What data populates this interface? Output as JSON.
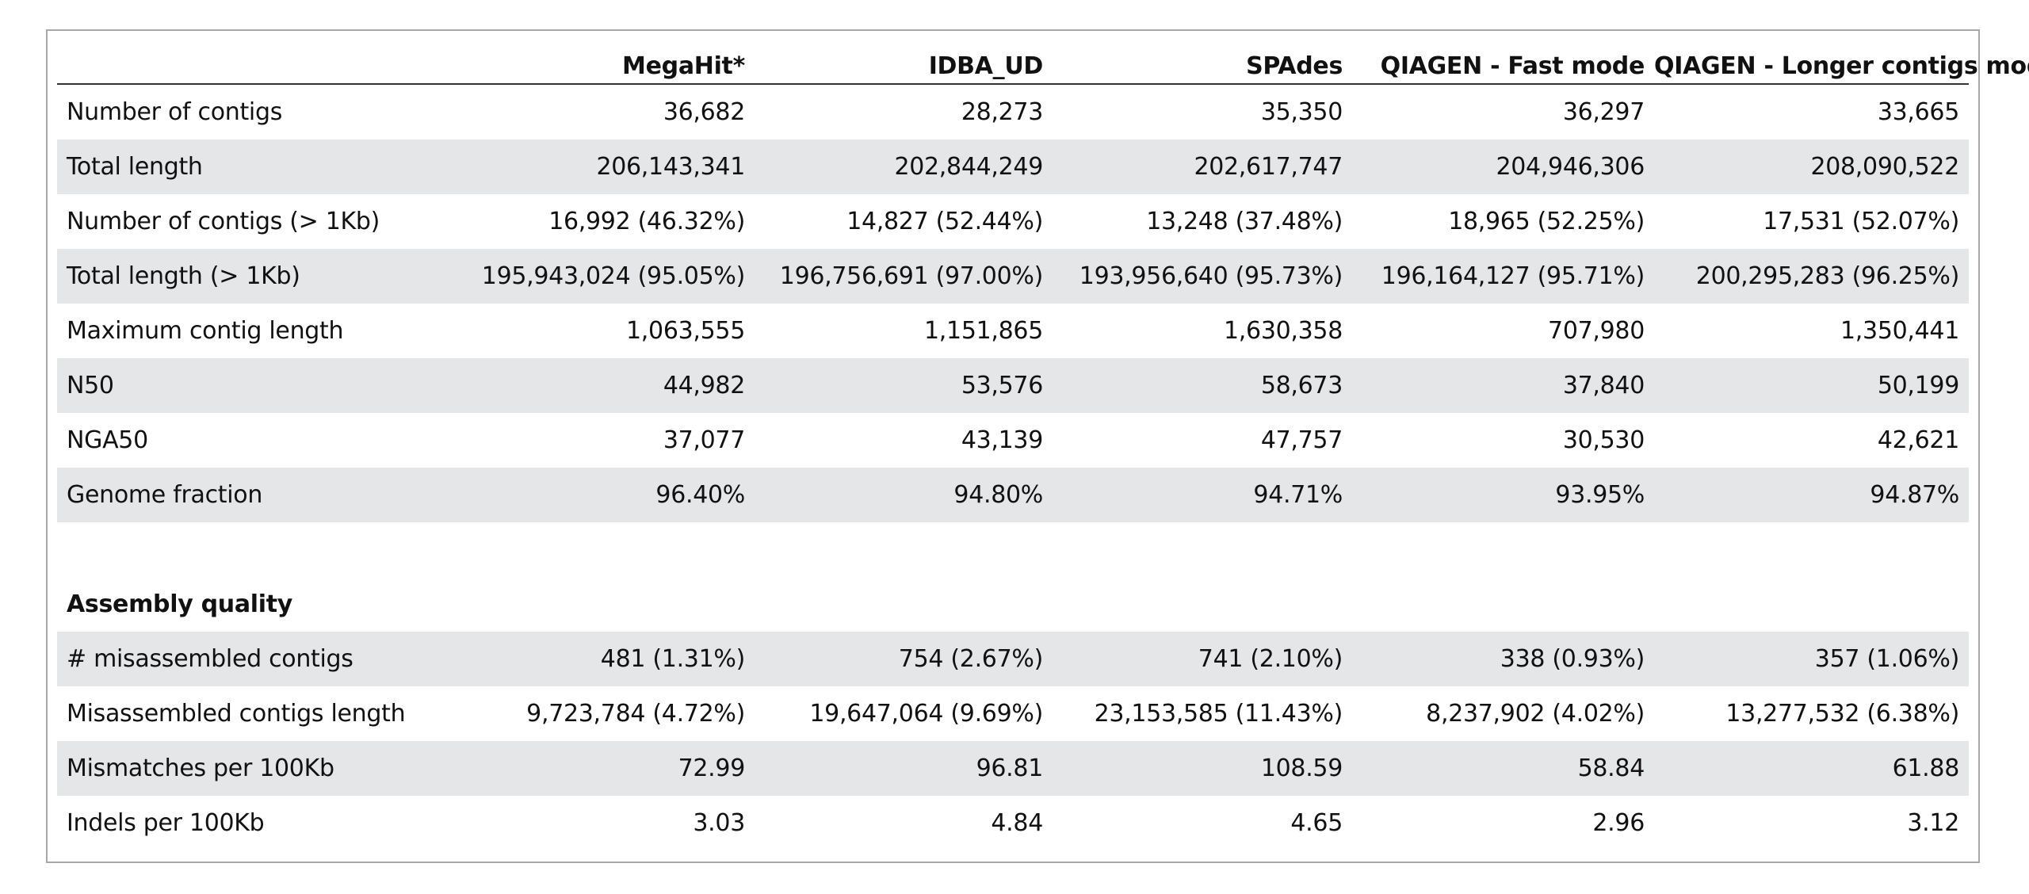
{
  "columns": [
    "",
    "MegaHit*",
    "IDBA_UD",
    "SPAdes",
    "QIAGEN - Fast mode",
    "QIAGEN - Longer contigs mode"
  ],
  "stats_rows": [
    {
      "label": "Number of contigs",
      "values": [
        "36,682",
        "28,273",
        "35,350",
        "36,297",
        "33,665"
      ]
    },
    {
      "label": "Total length",
      "values": [
        "206,143,341",
        "202,844,249",
        "202,617,747",
        "204,946,306",
        "208,090,522"
      ]
    },
    {
      "label": "Number of contigs (> 1Kb)",
      "values": [
        "16,992 (46.32%)",
        "14,827 (52.44%)",
        "13,248 (37.48%)",
        "18,965 (52.25%)",
        "17,531 (52.07%)"
      ]
    },
    {
      "label": "Total length (> 1Kb)",
      "values": [
        "195,943,024 (95.05%)",
        "196,756,691 (97.00%)",
        "193,956,640 (95.73%)",
        "196,164,127  (95.71%)",
        "200,295,283 (96.25%)"
      ]
    },
    {
      "label": "Maximum contig length",
      "values": [
        "1,063,555",
        "1,151,865",
        "1,630,358",
        "707,980",
        "1,350,441"
      ]
    },
    {
      "label": "N50",
      "values": [
        "44,982",
        "53,576",
        "58,673",
        "37,840",
        "50,199"
      ]
    },
    {
      "label": "NGA50",
      "values": [
        "37,077",
        "43,139",
        "47,757",
        "30,530",
        "42,621"
      ]
    },
    {
      "label": "Genome fraction",
      "values": [
        "96.40%",
        "94.80%",
        "94.71%",
        "93.95%",
        "94.87%"
      ]
    }
  ],
  "section_title": "Assembly quality",
  "quality_rows": [
    {
      "label": "# misassembled contigs",
      "values": [
        "481 (1.31%)",
        "754 (2.67%)",
        "741 (2.10%)",
        "338 (0.93%)",
        "357 (1.06%)"
      ]
    },
    {
      "label": "Misassembled contigs length",
      "values": [
        "9,723,784 (4.72%)",
        "19,647,064 (9.69%)",
        "23,153,585 (11.43%)",
        "8,237,902 (4.02%)",
        "13,277,532 (6.38%)"
      ]
    },
    {
      "label": "Mismatches per 100Kb",
      "values": [
        "72.99",
        "96.81",
        "108.59",
        "58.84",
        "61.88"
      ]
    },
    {
      "label": "Indels per 100Kb",
      "values": [
        "3.03",
        "4.84",
        "4.65",
        "2.96",
        "3.12"
      ]
    }
  ]
}
